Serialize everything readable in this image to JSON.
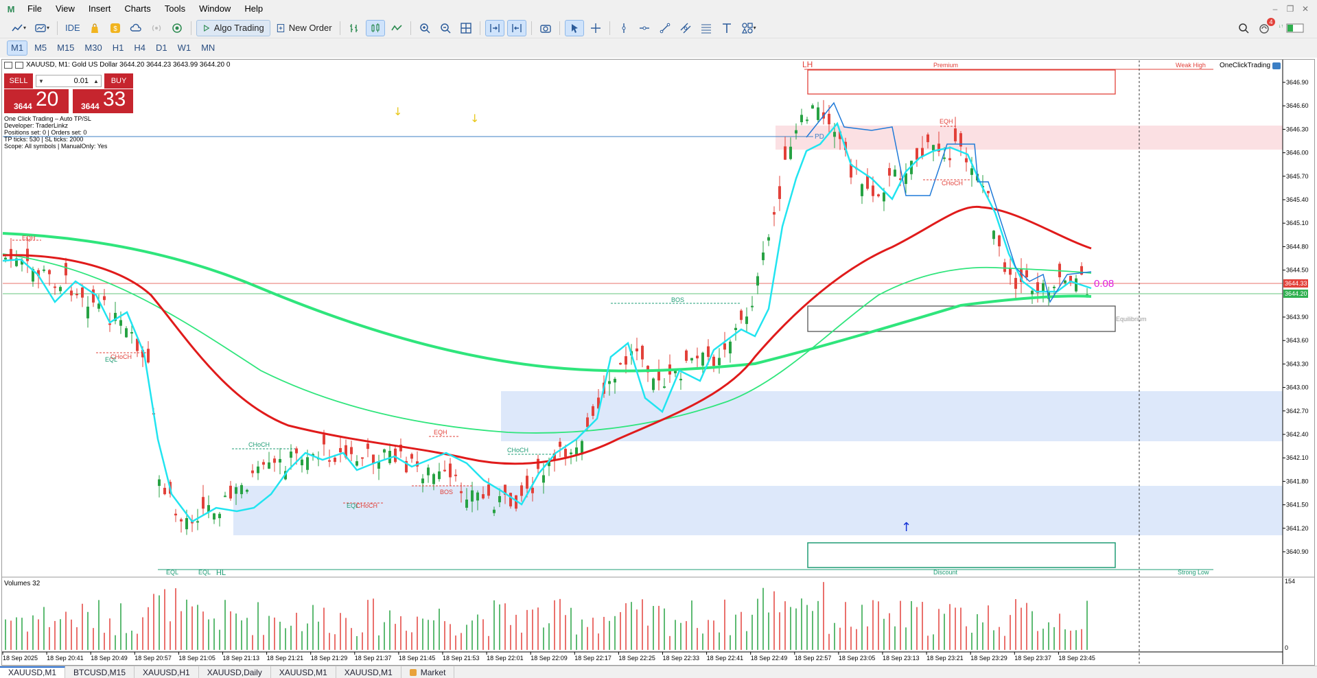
{
  "menu": {
    "items": [
      "File",
      "View",
      "Insert",
      "Charts",
      "Tools",
      "Window",
      "Help"
    ]
  },
  "toolbar": {
    "ide_label": "IDE",
    "algo_label": "Algo Trading",
    "new_order_label": "New Order",
    "notifications_count": "4",
    "icons": [
      "line-chart-icon",
      "chart-template-icon",
      "dollar-icon",
      "lock-bag-icon",
      "cloud-icon",
      "vps-icon",
      "signal-icon",
      "zoom-in-icon",
      "zoom-out-icon",
      "grid-icon",
      "scroll-icon",
      "autoscroll-icon",
      "screenshot-icon",
      "cursor-icon",
      "crosshair-icon",
      "vertical-line-icon",
      "horizontal-line-icon",
      "trend-line-icon",
      "channel-icon",
      "fibonacci-icon",
      "text-icon",
      "shapes-icon",
      "search-icon",
      "notifications-icon",
      "signal-strength-icon"
    ]
  },
  "timeframes": {
    "items": [
      "M1",
      "M5",
      "M15",
      "M30",
      "H1",
      "H4",
      "D1",
      "W1",
      "MN"
    ],
    "active": "M1"
  },
  "chart": {
    "header": "XAUUSD, M1:  Gold US Dollar  3644.20 3644.23 3643.99 3644.20  0",
    "oneclick_label": "OneClickTrading",
    "sell_label": "SELL",
    "buy_label": "BUY",
    "lot_value": "0.01",
    "sell_price_small": "3644",
    "sell_price_big": "20",
    "buy_price_small": "3644",
    "buy_price_big": "33",
    "info_lines": [
      "One Click Trading – Auto TP/SL",
      "Developer: TraderLinkz",
      "Positions set: 0 | Orders set: 0",
      "TP ticks: 530 | SL ticks: 2000",
      "Scope: All symbols | ManualOnly: Yes"
    ],
    "volumes_label": "Volumes 32",
    "spread_label": "0.08",
    "price_axis": [
      "3646.90",
      "3646.60",
      "3646.30",
      "3646.00",
      "3645.70",
      "3645.40",
      "3645.10",
      "3644.80",
      "3644.50",
      "3643.90",
      "3643.60",
      "3643.30",
      "3643.00",
      "3642.70",
      "3642.40",
      "3642.10",
      "3641.80",
      "3641.50",
      "3641.20",
      "3640.90"
    ],
    "ask_tag": "3644.33",
    "bid_tag": "3644.20",
    "volume_axis_max": "154",
    "volume_axis_min": "0",
    "time_axis": [
      "18 Sep 2025",
      "18 Sep 20:41",
      "18 Sep 20:49",
      "18 Sep 20:57",
      "18 Sep 21:05",
      "18 Sep 21:13",
      "18 Sep 21:21",
      "18 Sep 21:29",
      "18 Sep 21:37",
      "18 Sep 21:45",
      "18 Sep 21:53",
      "18 Sep 22:01",
      "18 Sep 22:09",
      "18 Sep 22:17",
      "18 Sep 22:25",
      "18 Sep 22:33",
      "18 Sep 22:41",
      "18 Sep 22:49",
      "18 Sep 22:57",
      "18 Sep 23:05",
      "18 Sep 23:13",
      "18 Sep 23:21",
      "18 Sep 23:29",
      "18 Sep 23:37",
      "18 Sep 23:45"
    ],
    "labels": {
      "lh": "LH",
      "premium": "Premium",
      "weak_high": "Weak High",
      "eqh": "EQH",
      "choch": "CHoCH",
      "bos": "BOS",
      "eql": "EQL",
      "hl": "HL",
      "pd": "PD",
      "equilibrium": "Equilibrium",
      "discount": "Discount",
      "strong_low": "Strong Low"
    }
  },
  "tabs": {
    "items": [
      "XAUUSD,M1",
      "BTCUSD,M15",
      "XAUUSD,H1",
      "XAUUSD,Daily",
      "XAUUSD,M1",
      "XAUUSD,M1",
      "Market"
    ],
    "active": "XAUUSD,M1"
  },
  "colors": {
    "bull": "#27a243",
    "bear": "#e2413a",
    "ma_red": "#e01b1b",
    "ma_green": "#2fe57c",
    "ma_cyan": "#21e4f0",
    "supply_zone": "#fbe0e3",
    "demand_zone": "#dde8fa",
    "accent": "#2b6fcf"
  }
}
